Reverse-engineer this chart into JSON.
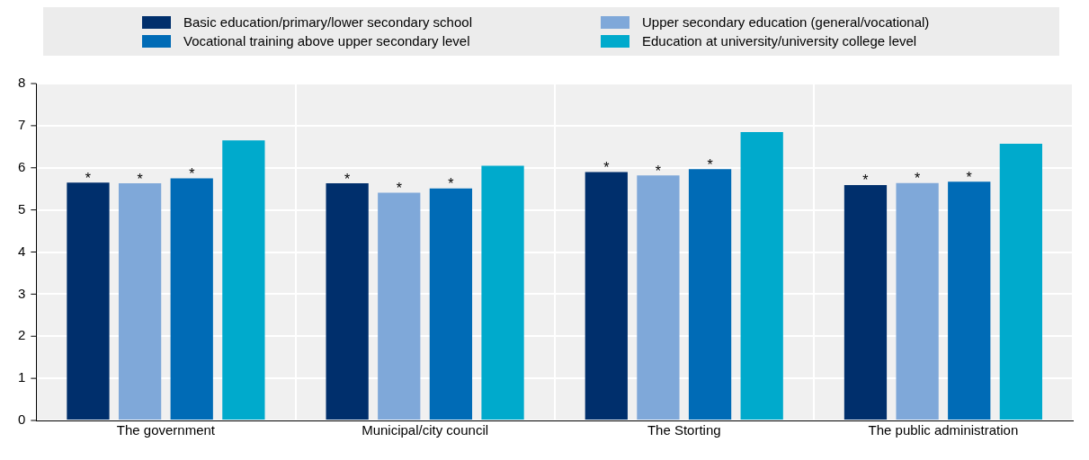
{
  "chart_data": {
    "type": "bar",
    "categories": [
      "The government",
      "Municipal/city council",
      "The Storting",
      "The public administration"
    ],
    "series": [
      {
        "name": "Basic education/primary/lower secondary school",
        "color": "#002f6c",
        "values": [
          5.65,
          5.63,
          5.9,
          5.59
        ],
        "value_labels": [
          "*",
          "*",
          "*",
          "*"
        ]
      },
      {
        "name": "Upper secondary education (general/vocational)",
        "color": "#7fa8d9",
        "values": [
          5.63,
          5.41,
          5.82,
          5.64
        ],
        "value_labels": [
          "*",
          "*",
          "*",
          "*"
        ]
      },
      {
        "name": "Vocational training above upper secondary level",
        "color": "#006bb6",
        "values": [
          5.75,
          5.51,
          5.97,
          5.67
        ],
        "value_labels": [
          "*",
          "*",
          "*",
          "*"
        ]
      },
      {
        "name": "Education at university/university college level",
        "color": "#00aacc",
        "values": [
          6.65,
          6.05,
          6.85,
          6.57
        ]
      }
    ],
    "ylim": [
      0,
      8
    ],
    "yticks": [
      0,
      1,
      2,
      3,
      4,
      5,
      6,
      7,
      8
    ],
    "grid": true,
    "legend": "top"
  }
}
